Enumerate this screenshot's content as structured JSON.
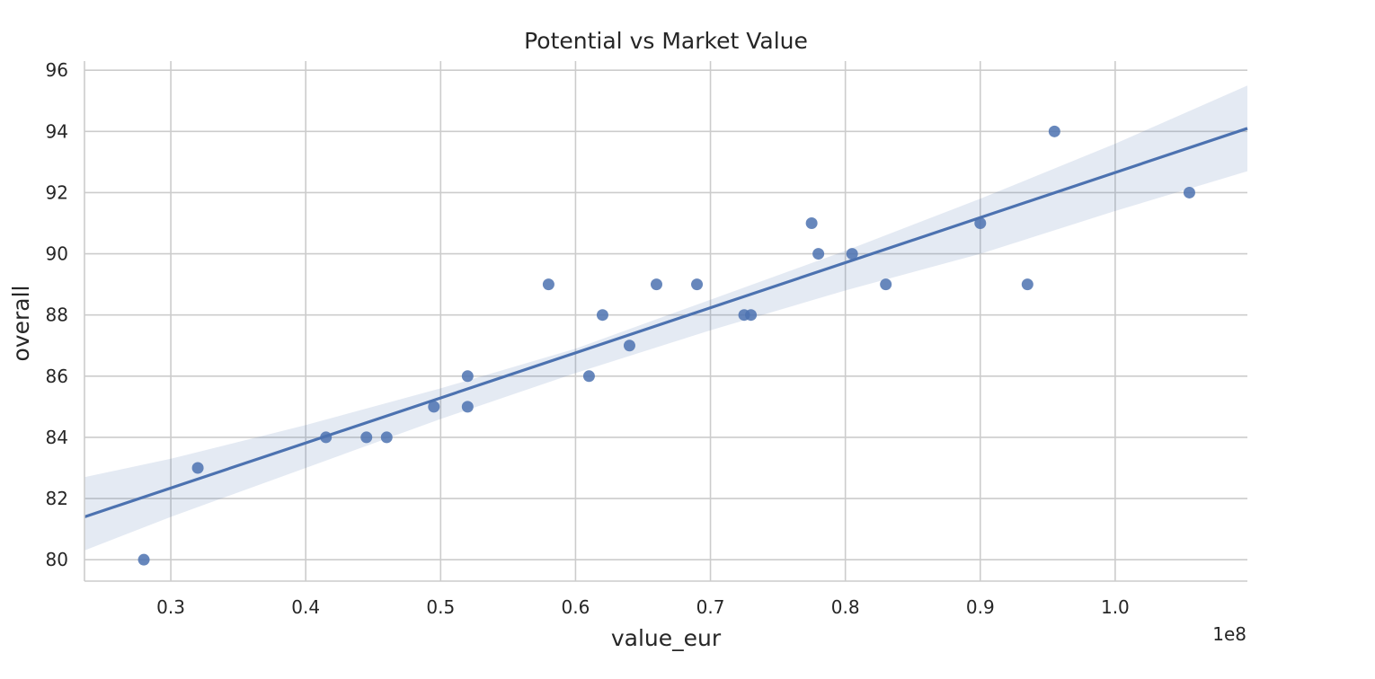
{
  "colors": {
    "background": "#ffffff",
    "grid": "#cccccc",
    "spine": "#cccccc",
    "text": "#262626",
    "series": "#4c72b0",
    "ci_band": "#4c72b0"
  },
  "chart_data": {
    "type": "scatter",
    "title": "Potential vs Market Value",
    "xlabel": "value_eur",
    "ylabel": "overall",
    "x_offset_label": "1e8",
    "xlim": [
      0.236,
      1.098
    ],
    "ylim": [
      79.3,
      96.3
    ],
    "grid": true,
    "x_ticks": [
      0.3,
      0.4,
      0.5,
      0.6,
      0.7,
      0.8,
      0.9,
      1.0
    ],
    "x_tick_labels": [
      "0.3",
      "0.4",
      "0.5",
      "0.6",
      "0.7",
      "0.8",
      "0.9",
      "1.0"
    ],
    "y_ticks": [
      80,
      82,
      84,
      86,
      88,
      90,
      92,
      94,
      96
    ],
    "y_tick_labels": [
      "80",
      "82",
      "84",
      "86",
      "88",
      "90",
      "92",
      "94",
      "96"
    ],
    "points": [
      {
        "x": 0.28,
        "y": 80
      },
      {
        "x": 0.32,
        "y": 83
      },
      {
        "x": 0.415,
        "y": 84
      },
      {
        "x": 0.445,
        "y": 84
      },
      {
        "x": 0.46,
        "y": 84
      },
      {
        "x": 0.495,
        "y": 85
      },
      {
        "x": 0.52,
        "y": 86
      },
      {
        "x": 0.52,
        "y": 85
      },
      {
        "x": 0.58,
        "y": 89
      },
      {
        "x": 0.61,
        "y": 86
      },
      {
        "x": 0.62,
        "y": 88
      },
      {
        "x": 0.64,
        "y": 87
      },
      {
        "x": 0.66,
        "y": 89
      },
      {
        "x": 0.69,
        "y": 89
      },
      {
        "x": 0.725,
        "y": 88
      },
      {
        "x": 0.73,
        "y": 88
      },
      {
        "x": 0.775,
        "y": 91
      },
      {
        "x": 0.78,
        "y": 90
      },
      {
        "x": 0.805,
        "y": 90
      },
      {
        "x": 0.83,
        "y": 89
      },
      {
        "x": 0.9,
        "y": 91
      },
      {
        "x": 0.935,
        "y": 89
      },
      {
        "x": 0.955,
        "y": 94
      },
      {
        "x": 1.055,
        "y": 92
      }
    ],
    "regression_line": [
      {
        "x": 0.236,
        "y": 81.4
      },
      {
        "x": 1.098,
        "y": 94.1
      }
    ],
    "confidence_band": {
      "upper": [
        {
          "x": 0.236,
          "y": 82.7
        },
        {
          "x": 0.3,
          "y": 83.3
        },
        {
          "x": 0.4,
          "y": 84.4
        },
        {
          "x": 0.5,
          "y": 85.6
        },
        {
          "x": 0.6,
          "y": 86.9
        },
        {
          "x": 0.7,
          "y": 88.5
        },
        {
          "x": 0.8,
          "y": 90.1
        },
        {
          "x": 0.9,
          "y": 91.8
        },
        {
          "x": 1.0,
          "y": 93.6
        },
        {
          "x": 1.098,
          "y": 95.5
        }
      ],
      "lower": [
        {
          "x": 0.236,
          "y": 80.3
        },
        {
          "x": 0.3,
          "y": 81.4
        },
        {
          "x": 0.4,
          "y": 83.0
        },
        {
          "x": 0.5,
          "y": 84.6
        },
        {
          "x": 0.6,
          "y": 86.1
        },
        {
          "x": 0.7,
          "y": 87.5
        },
        {
          "x": 0.8,
          "y": 88.8
        },
        {
          "x": 0.9,
          "y": 90.0
        },
        {
          "x": 1.0,
          "y": 91.4
        },
        {
          "x": 1.098,
          "y": 92.7
        }
      ]
    }
  }
}
